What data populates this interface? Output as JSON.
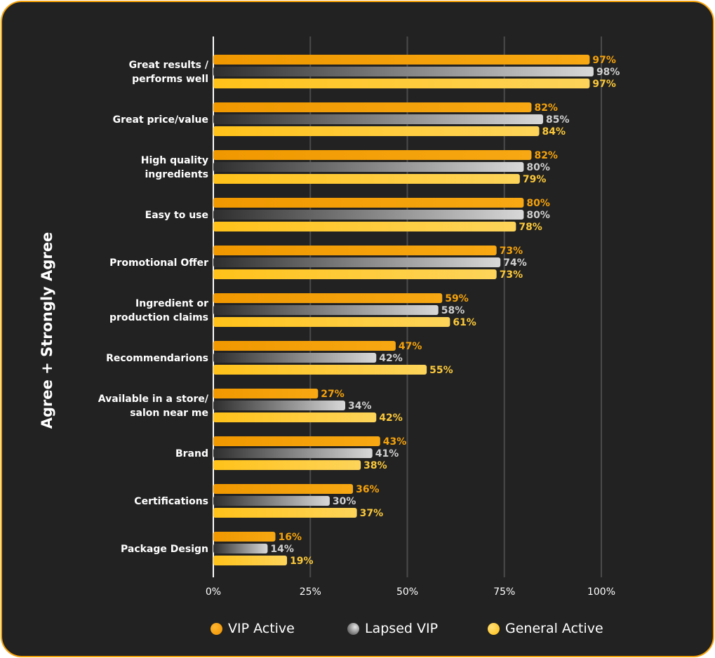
{
  "chart_data": {
    "type": "bar",
    "orientation": "horizontal",
    "ylabel": "Agree + Strongly Agree",
    "categories": [
      "Great results /\nperforms well",
      "Great price/value",
      "High quality\ningredients",
      "Easy to use",
      "Promotional Offer",
      "Ingredient or\nproduction claims",
      "Recommendarions",
      "Available in a store/\nsalon near me",
      "Brand",
      "Certifications",
      "Package Design"
    ],
    "series": [
      {
        "name": "VIP Active",
        "values": [
          97,
          82,
          82,
          80,
          73,
          59,
          47,
          27,
          43,
          36,
          16
        ]
      },
      {
        "name": "Lapsed VIP",
        "values": [
          98,
          85,
          80,
          80,
          74,
          58,
          42,
          34,
          41,
          30,
          14
        ]
      },
      {
        "name": "General Active",
        "values": [
          97,
          84,
          79,
          78,
          73,
          61,
          55,
          42,
          38,
          37,
          19
        ]
      }
    ],
    "xlim": [
      0,
      100
    ],
    "x_ticks": [
      "0%",
      "25%",
      "50%",
      "75%",
      "100%"
    ],
    "value_suffix": "%",
    "grid": true,
    "legend_position": "bottom",
    "colors": {
      "VIP Active": "#f5a20a",
      "Lapsed VIP": "#b0b0b0",
      "General Active": "#fcc93a"
    }
  }
}
